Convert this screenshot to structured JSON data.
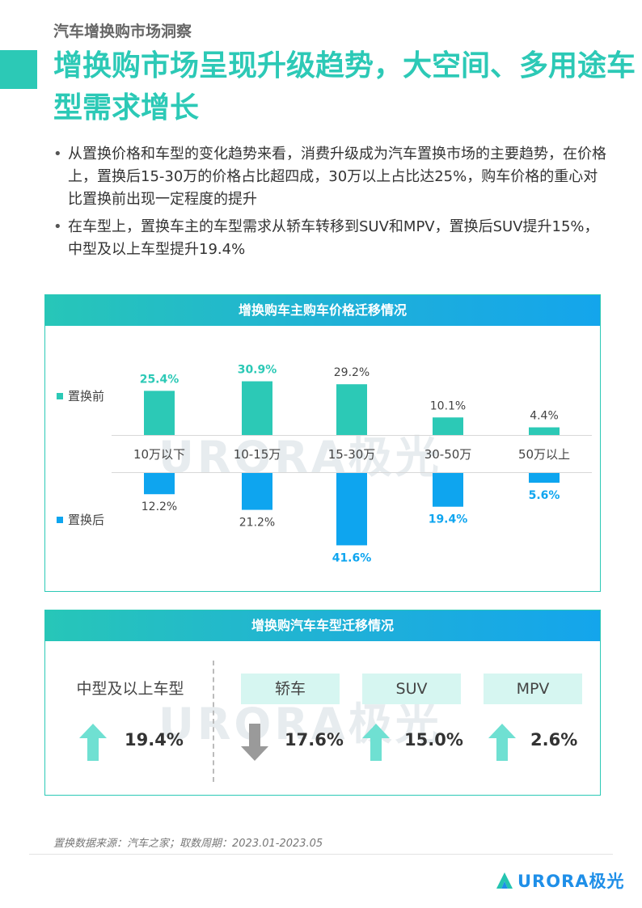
{
  "header": {
    "section_label": "汽车增换购市场洞察",
    "headline": "增换购市场呈现升级趋势，大空间、多用途车型需求增长"
  },
  "bullets": [
    "从置换价格和车型的变化趋势来看，消费升级成为汽车置换市场的主要趋势，在价格上，置换后15-30万的价格占比超四成，30万以上占比达25%，购车价格的重心对比置换前出现一定程度的提升",
    "在车型上，置换车主的车型需求从轿车转移到SUV和MPV，置换后SUV提升15%，中型及以上车型提升19.4%"
  ],
  "colors": {
    "teal": "#2cc9b6",
    "blue": "#0ea5ef",
    "gray": "#999999",
    "arrow_up": "#6fe0d2"
  },
  "price_panel": {
    "title": "增换购车主购车价格迁移情况",
    "watermark": "URORA极光",
    "chart_data": {
      "type": "bar",
      "categories": [
        "10万以下",
        "10-15万",
        "15-30万",
        "30-50万",
        "50万以上"
      ],
      "series": [
        {
          "name": "置换前",
          "values": [
            25.4,
            30.9,
            29.2,
            10.1,
            4.4
          ],
          "labels": [
            "25.4%",
            "30.9%",
            "29.2%",
            "10.1%",
            "4.4%"
          ],
          "highlight": [
            true,
            true,
            false,
            false,
            false
          ]
        },
        {
          "name": "置换后",
          "values": [
            12.2,
            21.2,
            41.6,
            19.4,
            5.6
          ],
          "labels": [
            "12.2%",
            "21.2%",
            "41.6%",
            "19.4%",
            "5.6%"
          ],
          "highlight": [
            false,
            false,
            true,
            true,
            true
          ]
        }
      ]
    }
  },
  "type_panel": {
    "title": "增换购汽车车型迁移情况",
    "watermark": "URORA极光",
    "items": [
      {
        "label": "中型及以上车型",
        "value": "19.4%",
        "direction": "up"
      },
      {
        "label": "轿车",
        "value": "17.6%",
        "direction": "down"
      },
      {
        "label": "SUV",
        "value": "15.0%",
        "direction": "up"
      },
      {
        "label": "MPV",
        "value": "2.6%",
        "direction": "up"
      }
    ]
  },
  "footer": {
    "source": "置换数据来源：汽车之家；取数周期：2023.01-2023.05",
    "logo_text": "URORA极光"
  }
}
